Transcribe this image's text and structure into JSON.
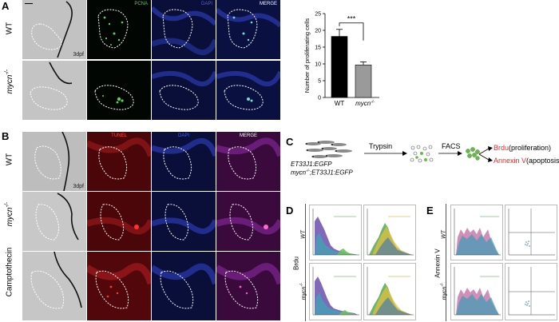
{
  "panels": {
    "A": "A",
    "B": "B",
    "C": "C",
    "D": "D",
    "E": "E"
  },
  "panelA": {
    "rows": [
      "WT",
      "mycn-/-"
    ],
    "row_mycn_base": "mycn",
    "row_mycn_sup": "-/-",
    "channels": [
      "PCNA",
      "DAPI",
      "MERGE"
    ],
    "stage": "3dpf"
  },
  "panelB": {
    "rows": [
      "WT",
      "mycn-/-",
      "Camptothecin"
    ],
    "row_mycn_base": "mycn",
    "row_mycn_sup": "-/-",
    "row_campto": "Camptothecin",
    "channels": [
      "TUNEL",
      "DAPI",
      "MERGE"
    ],
    "stage": "3dpf"
  },
  "chart_data": {
    "type": "bar",
    "categories": [
      "WT",
      "mycn-/-"
    ],
    "category_labels": {
      "wt": "WT",
      "mycn_base": "mycn",
      "mycn_sup": "-/-"
    },
    "values": [
      18.2,
      9.7
    ],
    "errors": [
      2.1,
      0.9
    ],
    "ylabel": "Number of proliferating cells",
    "ylim": [
      0,
      25
    ],
    "yticks": [
      0,
      5,
      10,
      15,
      20,
      25
    ],
    "significance": "***",
    "colors": [
      "#000000",
      "#9a9a9a"
    ]
  },
  "panelC": {
    "genotype1": "ET33J1:EGFP",
    "genotype2_prefix": "mycn",
    "genotype2_sup": "-/-",
    "genotype2_suffix": ";ET33J1:EGFP",
    "step1": "Trypsin",
    "step2": "FACS",
    "out1_label": "Brdu",
    "out1_paren": "(proliferation)",
    "out2_label": "Annexin V",
    "out2_paren": "(apoptosis)",
    "highlight_color": "#e8262a"
  },
  "panelD": {
    "side_label": "Brdu",
    "rows": [
      "WT",
      "mycn-/-"
    ],
    "row_mycn_base": "mycn",
    "row_mycn_sup": "-/-"
  },
  "panelE": {
    "side_label": "Annexin V",
    "rows": [
      "WT",
      "mycn-/-"
    ],
    "row_mycn_base": "mycn",
    "row_mycn_sup": "-/-"
  }
}
